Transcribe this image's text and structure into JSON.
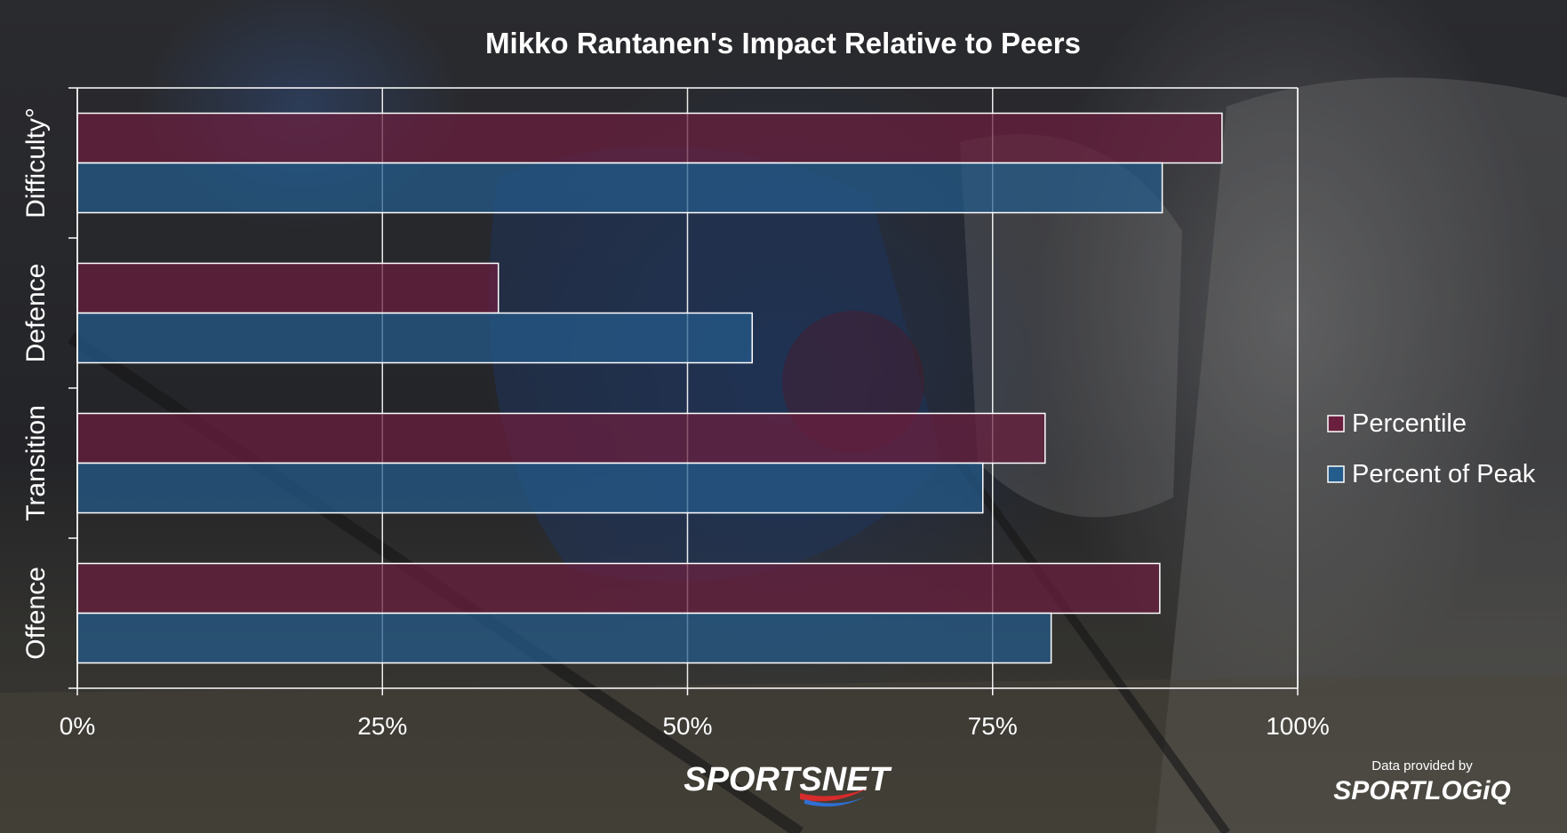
{
  "chart_data": {
    "type": "bar",
    "orientation": "horizontal",
    "title": "Mikko Rantanen's Impact Relative to Peers",
    "categories": [
      "Difficulty°",
      "Defence",
      "Transition",
      "Offence"
    ],
    "series": [
      {
        "name": "Percentile",
        "color": "#6b1f3e",
        "values": [
          93.8,
          34.5,
          79.3,
          88.7
        ]
      },
      {
        "name": "Percent of Peak",
        "color": "#245c8c",
        "values": [
          88.9,
          55.3,
          74.2,
          79.8
        ]
      }
    ],
    "xlim": [
      0,
      100
    ],
    "x_ticks": [
      "0%",
      "25%",
      "50%",
      "75%",
      "100%"
    ],
    "x_tick_values": [
      0,
      25,
      50,
      75,
      100
    ],
    "grid": true,
    "legend_position": "right"
  },
  "branding": {
    "sportsnet": "SPORTSNET",
    "provided_by": "Data provided by",
    "sportlogiq": "SPORTLOGiQ"
  },
  "icons": {
    "background": "hockey-photo-background"
  }
}
